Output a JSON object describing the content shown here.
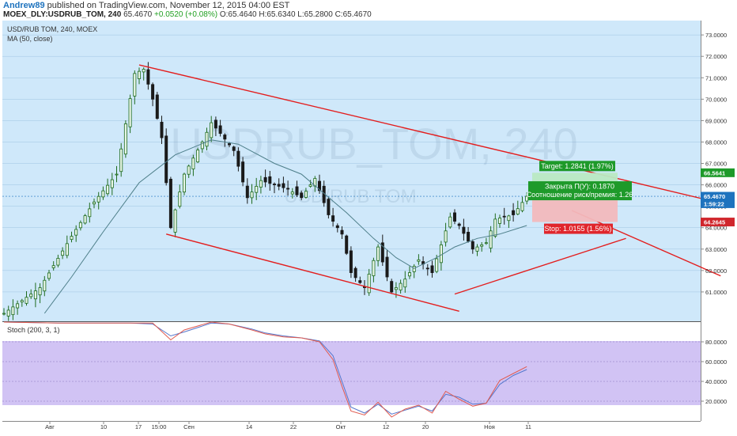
{
  "header": {
    "author": "Andrew89",
    "published": "published on TradingView.com, November 12, 2015 04:00 EST",
    "symbol": "MOEX_DLY:USDRUB_TOM, 240",
    "last": "65.4670",
    "change": "+0.0520 (+0.08%)",
    "ohlc": {
      "o": "O:65.4640",
      "h": "H:65.6340",
      "l": "L:65.2800",
      "c": "C:65.4670"
    }
  },
  "legend": {
    "symbol_label": "USD/RUB TOM, 240, MOEX",
    "ma_label": "MA (50, close)",
    "stoch_label": "Stoch (200, 3, 1)"
  },
  "watermark": {
    "line1": "USDRUB_TOM, 240",
    "line2": "USD/RUB TOM"
  },
  "colors": {
    "price_pane_bg": "#cfe8fa",
    "stoch_band": "#c9b8f2",
    "trendline": "#e31e1e",
    "ma": "#4e7f8a",
    "candle_up": "#1e6b1e",
    "candle_down": "#1a1a1a",
    "target_zone": "#b9e9c3",
    "stop_zone": "#f2b9bd",
    "k_line": "#e05a4f",
    "d_line": "#5577cc"
  },
  "price_axis": {
    "ticks": [
      "73.0000",
      "72.0000",
      "71.0000",
      "70.0000",
      "69.0000",
      "68.0000",
      "67.0000",
      "66.0000",
      "65.0000",
      "64.0000",
      "63.0000",
      "62.0000",
      "61.0000"
    ],
    "tick_values": [
      73,
      72,
      71,
      70,
      69,
      68,
      67,
      66,
      65,
      64,
      63,
      62,
      61
    ],
    "ylim": [
      60.0,
      73.3
    ],
    "scale_labels": [
      {
        "text": "66.5641",
        "value": 66.5641,
        "color": "#1e9a2a"
      },
      {
        "text": "65.4670",
        "value": 65.467,
        "color": "#1e73be"
      },
      {
        "text": "1:59:22",
        "value": 65.12,
        "color": "#1e73be"
      },
      {
        "text": "64.2645",
        "value": 64.2645,
        "color": "#d0262c"
      }
    ]
  },
  "stoch_axis": {
    "ticks": [
      "80.0000",
      "60.0000",
      "40.0000",
      "20.0000"
    ],
    "tick_values": [
      80,
      60,
      40,
      20
    ],
    "ylim": [
      0,
      100
    ]
  },
  "time_axis": {
    "labels": [
      "Авг",
      "10",
      "17",
      "15:00",
      "Сен",
      "14",
      "22",
      "Окт",
      "12",
      "20",
      "Ноя",
      "11"
    ]
  },
  "position": {
    "target_text": "Target: 1.2841 (1.97%)",
    "close_text": "Закрыта П(У): 0.1870",
    "ratio_text": "Соотношение риск/премия: 1.26",
    "stop_text": "Stop: 1.0155 (1.56%)",
    "target_price": 66.5641,
    "entry_price": 65.28,
    "stop_price": 64.2645
  },
  "trendlines": [
    {
      "name": "upper-channel",
      "from": {
        "bar": 30,
        "price": 71.6
      },
      "to": {
        "bar": 167,
        "price": 64.75
      }
    },
    {
      "name": "lower-channel",
      "from": {
        "bar": 36,
        "price": 63.7
      },
      "to": {
        "bar": 101,
        "price": 60.1
      }
    },
    {
      "name": "rising-support",
      "from": {
        "bar": 100,
        "price": 60.9
      },
      "to": {
        "bar": 138,
        "price": 63.5
      }
    },
    {
      "name": "lower-extension",
      "from": {
        "bar": 126,
        "price": 64.8
      },
      "to": {
        "bar": 159,
        "price": 61.75
      }
    }
  ],
  "chart_data": {
    "type": "line",
    "price_path": [
      [
        0,
        60.0
      ],
      [
        8,
        61.2
      ],
      [
        15,
        63.6
      ],
      [
        20,
        65.2
      ],
      [
        25,
        66.5
      ],
      [
        29,
        71.2
      ],
      [
        31,
        71.4
      ],
      [
        33,
        70.0
      ],
      [
        35,
        68.2
      ],
      [
        37,
        64.0
      ],
      [
        40,
        66.5
      ],
      [
        44,
        68.0
      ],
      [
        46,
        68.9
      ],
      [
        48,
        68.4
      ],
      [
        51,
        67.6
      ],
      [
        54,
        65.4
      ],
      [
        57,
        66.2
      ],
      [
        60,
        66.0
      ],
      [
        63,
        65.8
      ],
      [
        66,
        65.4
      ],
      [
        69,
        66.3
      ],
      [
        72,
        64.6
      ],
      [
        75,
        63.7
      ],
      [
        77,
        61.9
      ],
      [
        80,
        61.2
      ],
      [
        83,
        63.1
      ],
      [
        86,
        61.0
      ],
      [
        89,
        61.6
      ],
      [
        92,
        62.5
      ],
      [
        95,
        61.9
      ],
      [
        99,
        64.5
      ],
      [
        101,
        64.1
      ],
      [
        104,
        63.0
      ],
      [
        107,
        63.3
      ],
      [
        109,
        64.4
      ],
      [
        113,
        64.6
      ],
      [
        116,
        65.467
      ]
    ],
    "ma_path": [
      [
        9,
        60.0
      ],
      [
        15,
        61.7
      ],
      [
        22,
        63.8
      ],
      [
        30,
        66.1
      ],
      [
        38,
        67.4
      ],
      [
        46,
        68.1
      ],
      [
        52,
        67.9
      ],
      [
        60,
        67.0
      ],
      [
        66,
        66.5
      ],
      [
        71,
        65.6
      ],
      [
        76,
        64.7
      ],
      [
        82,
        63.5
      ],
      [
        87,
        62.6
      ],
      [
        91,
        62.1
      ],
      [
        96,
        62.6
      ],
      [
        100,
        63.1
      ],
      [
        105,
        63.5
      ],
      [
        110,
        63.7
      ],
      [
        116,
        64.1
      ]
    ],
    "stoch_k_path": [
      [
        0,
        100
      ],
      [
        12,
        99
      ],
      [
        20,
        99
      ],
      [
        28,
        99
      ],
      [
        33,
        99
      ],
      [
        37,
        82
      ],
      [
        40,
        92
      ],
      [
        46,
        100
      ],
      [
        50,
        98
      ],
      [
        55,
        92
      ],
      [
        58,
        88
      ],
      [
        62,
        85
      ],
      [
        66,
        84
      ],
      [
        70,
        80
      ],
      [
        73,
        62
      ],
      [
        75,
        35
      ],
      [
        77,
        10
      ],
      [
        80,
        6
      ],
      [
        83,
        19
      ],
      [
        86,
        4
      ],
      [
        89,
        12
      ],
      [
        92,
        16
      ],
      [
        95,
        8
      ],
      [
        98,
        30
      ],
      [
        101,
        22
      ],
      [
        104,
        15
      ],
      [
        107,
        18
      ],
      [
        110,
        41
      ],
      [
        113,
        48
      ],
      [
        116,
        55
      ]
    ],
    "stoch_d_path": [
      [
        0,
        100
      ],
      [
        12,
        99
      ],
      [
        20,
        99
      ],
      [
        28,
        99
      ],
      [
        33,
        98
      ],
      [
        37,
        86
      ],
      [
        40,
        90
      ],
      [
        46,
        99
      ],
      [
        50,
        98
      ],
      [
        55,
        93
      ],
      [
        58,
        89
      ],
      [
        62,
        86
      ],
      [
        66,
        84
      ],
      [
        70,
        81
      ],
      [
        73,
        66
      ],
      [
        75,
        40
      ],
      [
        77,
        14
      ],
      [
        80,
        8
      ],
      [
        83,
        17
      ],
      [
        86,
        7
      ],
      [
        89,
        11
      ],
      [
        92,
        15
      ],
      [
        95,
        10
      ],
      [
        98,
        27
      ],
      [
        101,
        24
      ],
      [
        104,
        17
      ],
      [
        107,
        18
      ],
      [
        110,
        37
      ],
      [
        113,
        46
      ],
      [
        116,
        52
      ]
    ]
  }
}
